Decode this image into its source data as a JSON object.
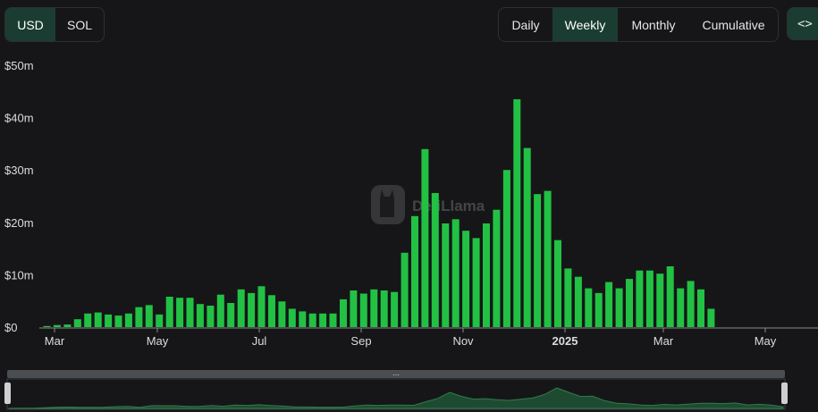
{
  "currency_toggle": {
    "options": [
      "USD",
      "SOL"
    ],
    "selected": "USD"
  },
  "period_toggle": {
    "options": [
      "Daily",
      "Weekly",
      "Monthly",
      "Cumulative"
    ],
    "selected": "Weekly"
  },
  "embed_button": {
    "label": "<>",
    "icon": "code-icon"
  },
  "watermark": {
    "text": "DefiLlama",
    "icon": "llama-logo-icon"
  },
  "colors": {
    "bar": "#22c144",
    "accent_bg": "#1b3d31",
    "background": "#161618"
  },
  "chart_data": {
    "type": "bar",
    "title": "",
    "xlabel": "",
    "ylabel": "",
    "ylim": [
      0,
      50
    ],
    "y_unit": "million USD",
    "y_ticks": [
      "$0",
      "$10m",
      "$20m",
      "$30m",
      "$40m",
      "$50m"
    ],
    "x_tick_labels": [
      "Mar",
      "May",
      "Jul",
      "Sep",
      "Nov",
      "2025",
      "Mar",
      "May"
    ],
    "x_tick_bold": "2025",
    "grid": false,
    "series": [
      {
        "values": [
          0.2,
          0.4,
          0.5,
          1.5,
          2.6,
          2.8,
          2.4,
          2.2,
          2.6,
          3.8,
          4.2,
          2.4,
          5.8,
          5.6,
          5.6,
          4.4,
          4.1,
          6.2,
          4.6,
          7.2,
          6.5,
          7.8,
          6.1,
          4.9,
          3.5,
          3.0,
          2.6,
          2.6,
          2.6,
          5.3,
          7.0,
          6.4,
          7.2,
          7.0,
          6.7,
          14.2,
          21.2,
          34.0,
          25.6,
          19.8,
          20.6,
          18.4,
          17.0,
          19.8,
          22.4,
          30.0,
          43.5,
          34.2,
          25.4,
          26.0,
          16.6,
          11.2,
          9.6,
          7.4,
          6.5,
          8.6,
          7.4,
          9.2,
          10.8,
          10.8,
          10.2,
          11.6,
          7.4,
          8.8,
          7.2,
          3.5
        ]
      }
    ]
  }
}
